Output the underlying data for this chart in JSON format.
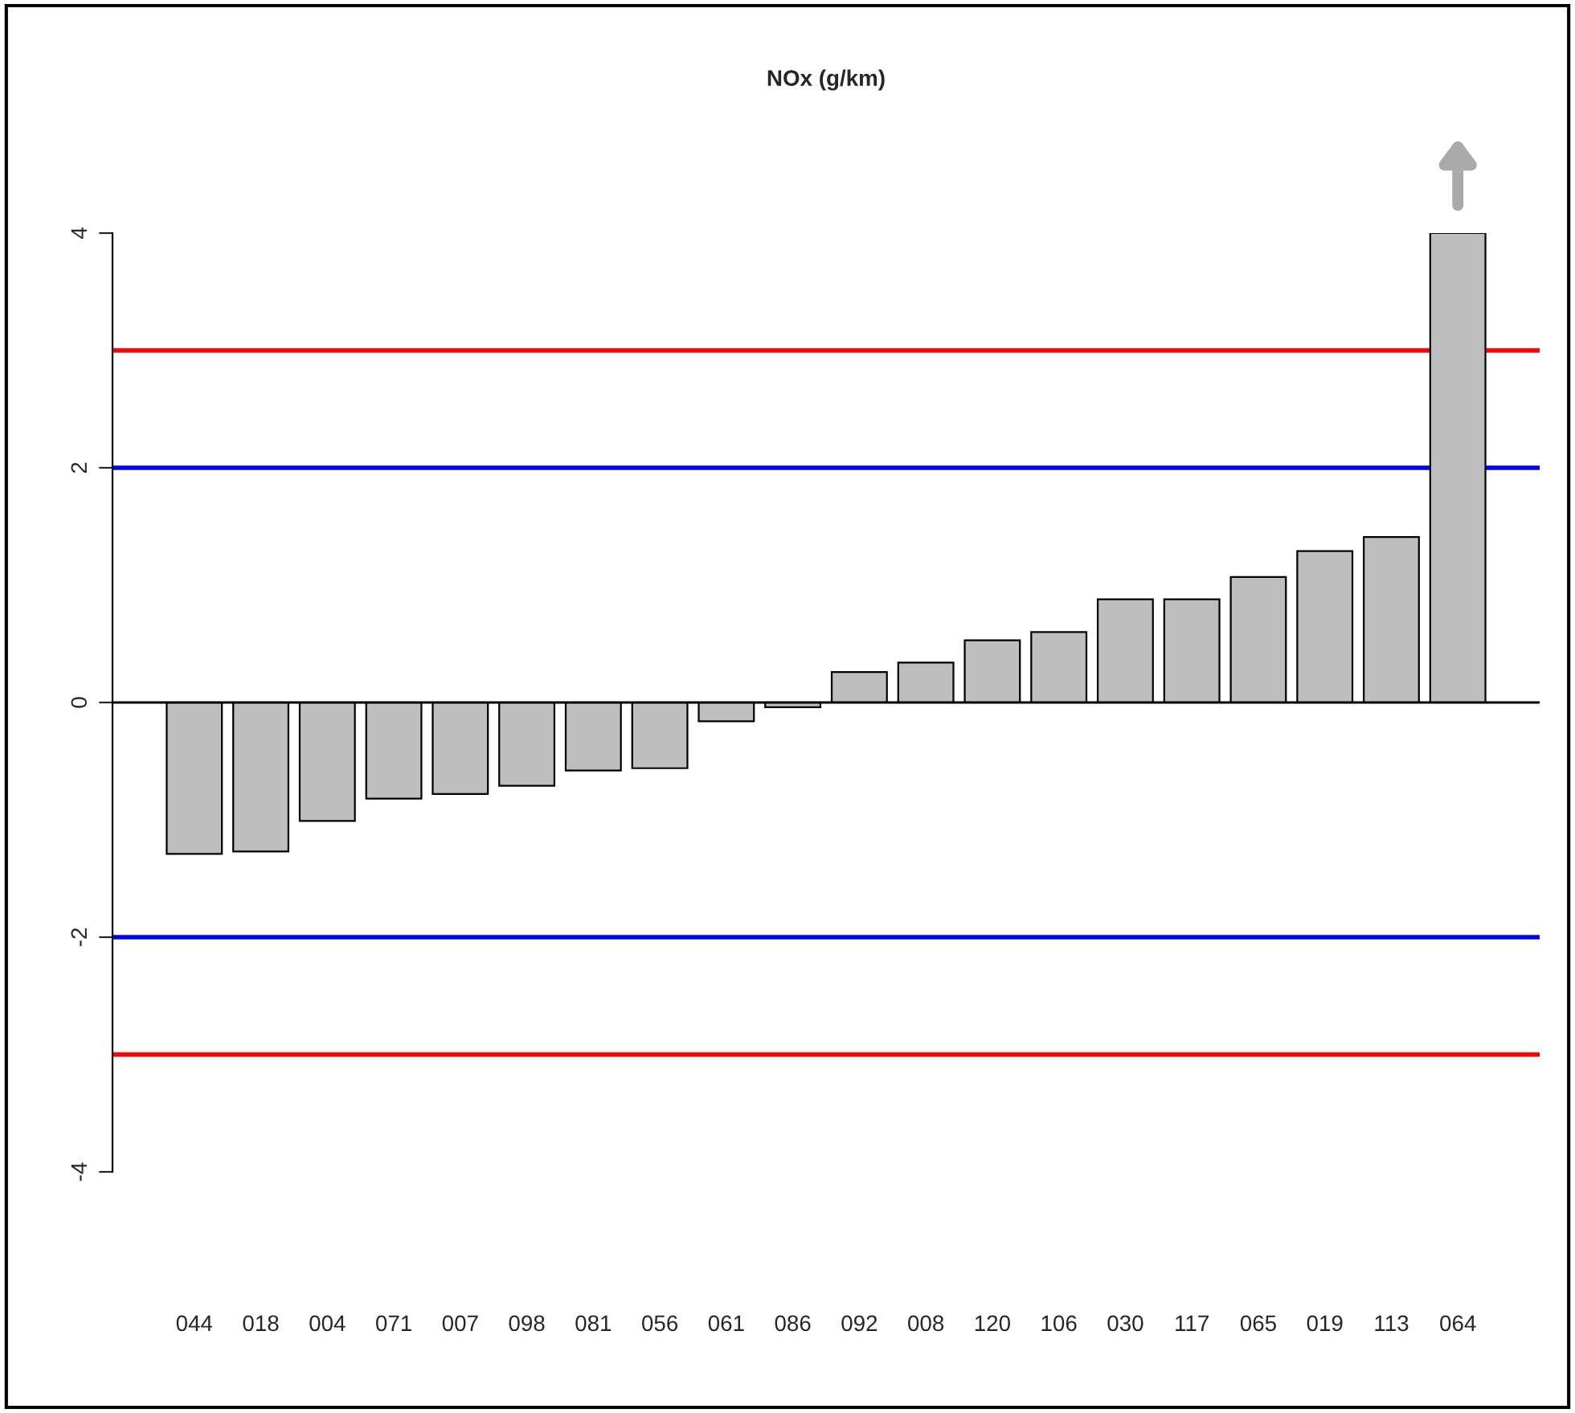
{
  "chart_data": {
    "type": "bar",
    "title": "NOx (g/km)",
    "categories": [
      "044",
      "018",
      "004",
      "071",
      "007",
      "098",
      "081",
      "056",
      "061",
      "086",
      "092",
      "008",
      "120",
      "106",
      "030",
      "117",
      "065",
      "019",
      "113",
      "064"
    ],
    "values": [
      -1.29,
      -1.27,
      -1.01,
      -0.82,
      -0.78,
      -0.71,
      -0.58,
      -0.56,
      -0.16,
      -0.04,
      0.26,
      0.34,
      0.53,
      0.6,
      0.88,
      0.88,
      1.07,
      1.29,
      1.41,
      4.0
    ],
    "color": "#bebebe",
    "ylim": [
      -4,
      4
    ],
    "yticks": [
      -4,
      -2,
      0,
      2,
      4
    ],
    "ref_lines": [
      {
        "axis": "y",
        "value": 0,
        "color": "#000000"
      },
      {
        "axis": "y",
        "value": 3,
        "color": "#ff0000"
      },
      {
        "axis": "y",
        "value": -3,
        "color": "#ff0000"
      },
      {
        "axis": "y",
        "value": 2,
        "color": "#0000ff"
      },
      {
        "axis": "y",
        "value": -2,
        "color": "#0000ff"
      }
    ],
    "grid": false,
    "legend": false
  }
}
